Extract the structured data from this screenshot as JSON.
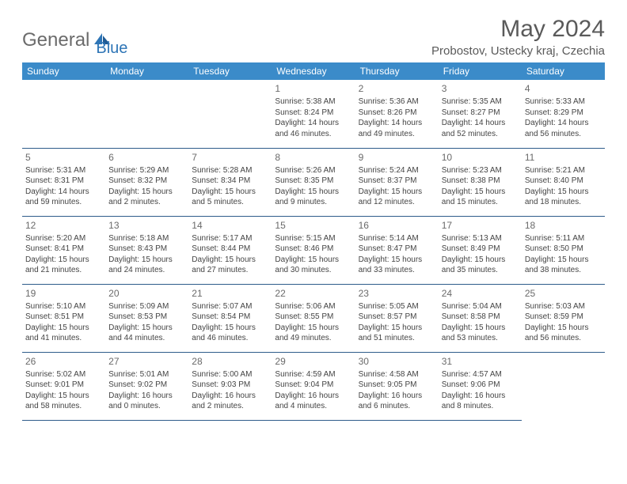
{
  "logo": {
    "part1": "General",
    "part2": "Blue"
  },
  "title": "May 2024",
  "location": "Probostov, Ustecky kraj, Czechia",
  "weekdays": [
    "Sunday",
    "Monday",
    "Tuesday",
    "Wednesday",
    "Thursday",
    "Friday",
    "Saturday"
  ],
  "colors": {
    "header_bg": "#3b8bc9",
    "header_text": "#ffffff",
    "border": "#2e5c8a",
    "logo_blue": "#2e75b6",
    "logo_gray": "#6b6b6b"
  },
  "layout": {
    "first_weekday_index": 3,
    "num_days": 31,
    "cols": 7
  },
  "days": [
    {
      "n": "1",
      "sunrise": "5:38 AM",
      "sunset": "8:24 PM",
      "daylight": "14 hours and 46 minutes."
    },
    {
      "n": "2",
      "sunrise": "5:36 AM",
      "sunset": "8:26 PM",
      "daylight": "14 hours and 49 minutes."
    },
    {
      "n": "3",
      "sunrise": "5:35 AM",
      "sunset": "8:27 PM",
      "daylight": "14 hours and 52 minutes."
    },
    {
      "n": "4",
      "sunrise": "5:33 AM",
      "sunset": "8:29 PM",
      "daylight": "14 hours and 56 minutes."
    },
    {
      "n": "5",
      "sunrise": "5:31 AM",
      "sunset": "8:31 PM",
      "daylight": "14 hours and 59 minutes."
    },
    {
      "n": "6",
      "sunrise": "5:29 AM",
      "sunset": "8:32 PM",
      "daylight": "15 hours and 2 minutes."
    },
    {
      "n": "7",
      "sunrise": "5:28 AM",
      "sunset": "8:34 PM",
      "daylight": "15 hours and 5 minutes."
    },
    {
      "n": "8",
      "sunrise": "5:26 AM",
      "sunset": "8:35 PM",
      "daylight": "15 hours and 9 minutes."
    },
    {
      "n": "9",
      "sunrise": "5:24 AM",
      "sunset": "8:37 PM",
      "daylight": "15 hours and 12 minutes."
    },
    {
      "n": "10",
      "sunrise": "5:23 AM",
      "sunset": "8:38 PM",
      "daylight": "15 hours and 15 minutes."
    },
    {
      "n": "11",
      "sunrise": "5:21 AM",
      "sunset": "8:40 PM",
      "daylight": "15 hours and 18 minutes."
    },
    {
      "n": "12",
      "sunrise": "5:20 AM",
      "sunset": "8:41 PM",
      "daylight": "15 hours and 21 minutes."
    },
    {
      "n": "13",
      "sunrise": "5:18 AM",
      "sunset": "8:43 PM",
      "daylight": "15 hours and 24 minutes."
    },
    {
      "n": "14",
      "sunrise": "5:17 AM",
      "sunset": "8:44 PM",
      "daylight": "15 hours and 27 minutes."
    },
    {
      "n": "15",
      "sunrise": "5:15 AM",
      "sunset": "8:46 PM",
      "daylight": "15 hours and 30 minutes."
    },
    {
      "n": "16",
      "sunrise": "5:14 AM",
      "sunset": "8:47 PM",
      "daylight": "15 hours and 33 minutes."
    },
    {
      "n": "17",
      "sunrise": "5:13 AM",
      "sunset": "8:49 PM",
      "daylight": "15 hours and 35 minutes."
    },
    {
      "n": "18",
      "sunrise": "5:11 AM",
      "sunset": "8:50 PM",
      "daylight": "15 hours and 38 minutes."
    },
    {
      "n": "19",
      "sunrise": "5:10 AM",
      "sunset": "8:51 PM",
      "daylight": "15 hours and 41 minutes."
    },
    {
      "n": "20",
      "sunrise": "5:09 AM",
      "sunset": "8:53 PM",
      "daylight": "15 hours and 44 minutes."
    },
    {
      "n": "21",
      "sunrise": "5:07 AM",
      "sunset": "8:54 PM",
      "daylight": "15 hours and 46 minutes."
    },
    {
      "n": "22",
      "sunrise": "5:06 AM",
      "sunset": "8:55 PM",
      "daylight": "15 hours and 49 minutes."
    },
    {
      "n": "23",
      "sunrise": "5:05 AM",
      "sunset": "8:57 PM",
      "daylight": "15 hours and 51 minutes."
    },
    {
      "n": "24",
      "sunrise": "5:04 AM",
      "sunset": "8:58 PM",
      "daylight": "15 hours and 53 minutes."
    },
    {
      "n": "25",
      "sunrise": "5:03 AM",
      "sunset": "8:59 PM",
      "daylight": "15 hours and 56 minutes."
    },
    {
      "n": "26",
      "sunrise": "5:02 AM",
      "sunset": "9:01 PM",
      "daylight": "15 hours and 58 minutes."
    },
    {
      "n": "27",
      "sunrise": "5:01 AM",
      "sunset": "9:02 PM",
      "daylight": "16 hours and 0 minutes."
    },
    {
      "n": "28",
      "sunrise": "5:00 AM",
      "sunset": "9:03 PM",
      "daylight": "16 hours and 2 minutes."
    },
    {
      "n": "29",
      "sunrise": "4:59 AM",
      "sunset": "9:04 PM",
      "daylight": "16 hours and 4 minutes."
    },
    {
      "n": "30",
      "sunrise": "4:58 AM",
      "sunset": "9:05 PM",
      "daylight": "16 hours and 6 minutes."
    },
    {
      "n": "31",
      "sunrise": "4:57 AM",
      "sunset": "9:06 PM",
      "daylight": "16 hours and 8 minutes."
    }
  ],
  "labels": {
    "sunrise": "Sunrise:",
    "sunset": "Sunset:",
    "daylight": "Daylight:"
  }
}
